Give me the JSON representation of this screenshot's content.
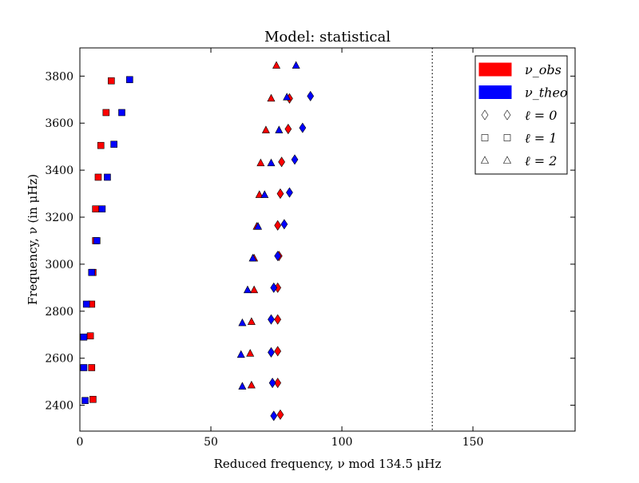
{
  "chart_data": {
    "type": "scatter",
    "title": "Model: statistical",
    "xlabel": "Reduced frequency, ν mod 134.5 μHz",
    "ylabel": "Frequency, ν (in μHz)",
    "xlim": [
      0,
      189
    ],
    "ylim": [
      2290,
      3920
    ],
    "xticks": [
      0,
      50,
      100,
      150
    ],
    "yticks": [
      2400,
      2600,
      2800,
      3000,
      3200,
      3400,
      3600,
      3800
    ],
    "grid": false,
    "legend_position": "top-right",
    "vline": {
      "x": 134.5,
      "style": "dotted"
    },
    "colors": {
      "obs": "#ff0000",
      "theo": "#0000ff"
    },
    "legend": [
      {
        "kind": "color",
        "color": "#ff0000",
        "label": "ν_obs"
      },
      {
        "kind": "color",
        "color": "#0000ff",
        "label": "ν_theo"
      },
      {
        "kind": "marker",
        "marker": "diamond",
        "label": "ℓ = 0"
      },
      {
        "kind": "marker",
        "marker": "square",
        "label": "ℓ = 1"
      },
      {
        "kind": "marker",
        "marker": "triangle",
        "label": "ℓ = 2"
      }
    ],
    "series": [
      {
        "name": "ν_obs",
        "degree": 0,
        "color": "#ff0000",
        "marker": "diamond",
        "points": [
          [
            76.5,
            2360
          ],
          [
            75.5,
            2495
          ],
          [
            75.5,
            2630
          ],
          [
            75.5,
            2765
          ],
          [
            75.5,
            2900
          ],
          [
            76.0,
            3035
          ],
          [
            75.5,
            3165
          ],
          [
            76.5,
            3300
          ],
          [
            77.0,
            3435
          ],
          [
            79.5,
            3575
          ],
          [
            80.0,
            3705
          ]
        ]
      },
      {
        "name": "ν_theo",
        "degree": 0,
        "color": "#0000ff",
        "marker": "diamond",
        "points": [
          [
            74.0,
            2355
          ],
          [
            73.5,
            2495
          ],
          [
            73.0,
            2625
          ],
          [
            73.0,
            2765
          ],
          [
            74.0,
            2900
          ],
          [
            75.5,
            3035
          ],
          [
            78.0,
            3170
          ],
          [
            80.0,
            3305
          ],
          [
            82.0,
            3445
          ],
          [
            85.0,
            3580
          ],
          [
            88.0,
            3715
          ]
        ]
      },
      {
        "name": "ν_obs",
        "degree": 1,
        "color": "#ff0000",
        "marker": "square",
        "points": [
          [
            5.0,
            2425
          ],
          [
            4.5,
            2560
          ],
          [
            4.0,
            2695
          ],
          [
            4.5,
            2830
          ],
          [
            5.0,
            2965
          ],
          [
            6.0,
            3100
          ],
          [
            6.0,
            3235
          ],
          [
            7.0,
            3370
          ],
          [
            8.0,
            3505
          ],
          [
            10.0,
            3645
          ],
          [
            12.0,
            3780
          ]
        ]
      },
      {
        "name": "ν_theo",
        "degree": 1,
        "color": "#0000ff",
        "marker": "square",
        "points": [
          [
            2.0,
            2420
          ],
          [
            1.5,
            2560
          ],
          [
            1.5,
            2690
          ],
          [
            2.5,
            2830
          ],
          [
            4.5,
            2965
          ],
          [
            6.5,
            3100
          ],
          [
            8.5,
            3235
          ],
          [
            10.5,
            3370
          ],
          [
            13.0,
            3510
          ],
          [
            16.0,
            3645
          ],
          [
            19.0,
            3785
          ]
        ]
      },
      {
        "name": "ν_obs",
        "degree": 2,
        "color": "#ff0000",
        "marker": "triangle",
        "points": [
          [
            65.5,
            2485
          ],
          [
            65.0,
            2620
          ],
          [
            65.5,
            2755
          ],
          [
            66.5,
            2890
          ],
          [
            66.5,
            3025
          ],
          [
            67.5,
            3160
          ],
          [
            68.5,
            3295
          ],
          [
            69.0,
            3430
          ],
          [
            71.0,
            3570
          ],
          [
            73.0,
            3705
          ],
          [
            75.0,
            3845
          ]
        ]
      },
      {
        "name": "ν_theo",
        "degree": 2,
        "color": "#0000ff",
        "marker": "triangle",
        "points": [
          [
            62.0,
            2480
          ],
          [
            61.5,
            2615
          ],
          [
            62.0,
            2750
          ],
          [
            64.0,
            2890
          ],
          [
            66.0,
            3025
          ],
          [
            68.0,
            3160
          ],
          [
            70.5,
            3295
          ],
          [
            73.0,
            3430
          ],
          [
            76.0,
            3570
          ],
          [
            79.0,
            3710
          ],
          [
            82.5,
            3845
          ]
        ]
      }
    ]
  }
}
